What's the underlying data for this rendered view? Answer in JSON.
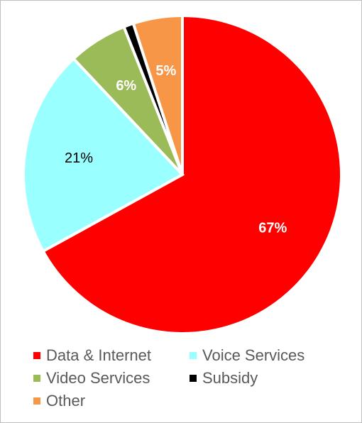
{
  "chart_data": {
    "type": "pie",
    "start_angle_deg": 0,
    "direction": "clockwise",
    "legend_position": "bottom",
    "slices": [
      {
        "name": "Data & Internet",
        "value": 67,
        "label": "67%",
        "color": "#ff0000",
        "label_color": "#ffffff"
      },
      {
        "name": "Voice Services",
        "value": 21,
        "label": "21%",
        "color": "#99ffff",
        "label_color": "#000000"
      },
      {
        "name": "Video Services",
        "value": 6,
        "label": "6%",
        "color": "#9bbb59",
        "label_color": "#ffffff"
      },
      {
        "name": "Subsidy",
        "value": 1,
        "label": "",
        "color": "#000000",
        "label_color": "#ffffff"
      },
      {
        "name": "Other",
        "value": 5,
        "label": "5%",
        "color": "#f79646",
        "label_color": "#ffffff"
      }
    ]
  }
}
